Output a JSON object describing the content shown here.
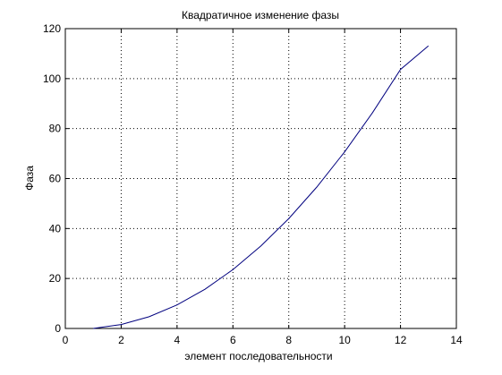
{
  "chart_data": {
    "type": "line",
    "title": "Квадратичное изменение фазы",
    "xlabel": "элемент последовательности",
    "ylabel": "Фаза",
    "xlim": [
      0,
      14
    ],
    "ylim": [
      0,
      120
    ],
    "xticks": [
      0,
      2,
      4,
      6,
      8,
      10,
      12,
      14
    ],
    "yticks": [
      0,
      20,
      40,
      60,
      80,
      100,
      120
    ],
    "grid": true,
    "grid_style": "dotted",
    "series": [
      {
        "color": "#00007f",
        "x": [
          1,
          2,
          3,
          4,
          5,
          6,
          7,
          8,
          9,
          10,
          11,
          12,
          13
        ],
        "y": [
          0,
          1.57,
          4.71,
          9.42,
          15.71,
          23.56,
          32.99,
          43.98,
          56.55,
          70.69,
          86.39,
          103.67,
          113.1
        ]
      }
    ]
  }
}
